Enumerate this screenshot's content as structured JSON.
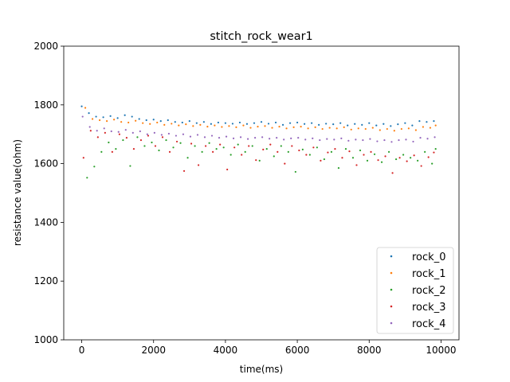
{
  "chart_data": {
    "type": "scatter",
    "title": "stitch_rock_wear1",
    "xlabel": "time(ms)",
    "ylabel": "resistance value(ohm)",
    "xlim": [
      -500,
      10500
    ],
    "ylim": [
      1000,
      2000
    ],
    "xticks": [
      0,
      2000,
      4000,
      6000,
      8000,
      10000
    ],
    "yticks": [
      1000,
      1200,
      1400,
      1600,
      1800,
      2000
    ],
    "grid": false,
    "legend_position": "lower-right",
    "series": [
      {
        "name": "rock_0",
        "color": "#1f77b4",
        "x": [
          0,
          200,
          400,
          600,
          800,
          1000,
          1200,
          1400,
          1600,
          1800,
          2000,
          2200,
          2400,
          2600,
          2800,
          3000,
          3200,
          3400,
          3600,
          3800,
          4000,
          4200,
          4400,
          4600,
          4800,
          5000,
          5200,
          5400,
          5600,
          5800,
          6000,
          6200,
          6400,
          6600,
          6800,
          7000,
          7200,
          7400,
          7600,
          7800,
          8000,
          8200,
          8400,
          8600,
          8800,
          9000,
          9200,
          9400,
          9600,
          9800
        ],
        "y": [
          1795,
          1772,
          1760,
          1758,
          1762,
          1755,
          1765,
          1760,
          1752,
          1748,
          1750,
          1745,
          1748,
          1742,
          1740,
          1745,
          1738,
          1742,
          1735,
          1740,
          1738,
          1736,
          1740,
          1735,
          1738,
          1742,
          1736,
          1740,
          1732,
          1738,
          1740,
          1735,
          1738,
          1732,
          1736,
          1734,
          1738,
          1730,
          1735,
          1732,
          1738,
          1730,
          1735,
          1728,
          1734,
          1738,
          1730,
          1745,
          1742,
          1745
        ]
      },
      {
        "name": "rock_1",
        "color": "#ff7f0e",
        "x": [
          100,
          300,
          500,
          700,
          900,
          1100,
          1300,
          1500,
          1700,
          1900,
          2100,
          2300,
          2500,
          2700,
          2900,
          3100,
          3300,
          3500,
          3700,
          3900,
          4100,
          4300,
          4500,
          4700,
          4900,
          5100,
          5300,
          5500,
          5700,
          5900,
          6100,
          6300,
          6500,
          6700,
          6900,
          7100,
          7300,
          7500,
          7700,
          7900,
          8100,
          8300,
          8500,
          8700,
          8900,
          9100,
          9300,
          9500,
          9700,
          9850
        ],
        "y": [
          1790,
          1752,
          1748,
          1745,
          1750,
          1742,
          1740,
          1746,
          1738,
          1735,
          1740,
          1732,
          1736,
          1730,
          1734,
          1728,
          1732,
          1726,
          1730,
          1725,
          1728,
          1724,
          1730,
          1722,
          1726,
          1728,
          1722,
          1726,
          1720,
          1724,
          1726,
          1720,
          1724,
          1718,
          1722,
          1720,
          1724,
          1716,
          1720,
          1718,
          1722,
          1714,
          1718,
          1712,
          1718,
          1720,
          1714,
          1725,
          1722,
          1730
        ]
      },
      {
        "name": "rock_2",
        "color": "#2ca02c",
        "x": [
          150,
          350,
          550,
          750,
          950,
          1150,
          1350,
          1550,
          1750,
          1950,
          2150,
          2350,
          2550,
          2750,
          2950,
          3150,
          3350,
          3550,
          3750,
          3950,
          4150,
          4350,
          4550,
          4750,
          4950,
          5150,
          5350,
          5550,
          5750,
          5950,
          6150,
          6350,
          6550,
          6750,
          6950,
          7150,
          7350,
          7550,
          7750,
          7950,
          8150,
          8350,
          8550,
          8750,
          8950,
          9150,
          9350,
          9550,
          9750,
          9850
        ],
        "y": [
          1552,
          1590,
          1640,
          1672,
          1650,
          1680,
          1592,
          1690,
          1660,
          1672,
          1645,
          1680,
          1655,
          1670,
          1620,
          1660,
          1640,
          1670,
          1650,
          1655,
          1630,
          1665,
          1640,
          1660,
          1610,
          1650,
          1625,
          1660,
          1640,
          1572,
          1648,
          1630,
          1655,
          1615,
          1640,
          1585,
          1650,
          1620,
          1645,
          1610,
          1632,
          1605,
          1640,
          1615,
          1630,
          1620,
          1610,
          1640,
          1600,
          1650
        ]
      },
      {
        "name": "rock_3",
        "color": "#d62728",
        "x": [
          50,
          250,
          450,
          650,
          850,
          1050,
          1250,
          1450,
          1650,
          1850,
          2050,
          2250,
          2450,
          2650,
          2850,
          3050,
          3250,
          3450,
          3650,
          3850,
          4050,
          4250,
          4450,
          4650,
          4850,
          5050,
          5250,
          5450,
          5650,
          5850,
          6050,
          6250,
          6450,
          6650,
          6850,
          7050,
          7250,
          7450,
          7650,
          7850,
          8050,
          8250,
          8450,
          8650,
          8850,
          9050,
          9250,
          9450,
          9650,
          9800
        ],
        "y": [
          1620,
          1712,
          1690,
          1705,
          1640,
          1700,
          1688,
          1650,
          1680,
          1695,
          1660,
          1690,
          1640,
          1675,
          1575,
          1668,
          1595,
          1660,
          1640,
          1665,
          1580,
          1655,
          1630,
          1660,
          1612,
          1648,
          1665,
          1640,
          1600,
          1660,
          1645,
          1630,
          1655,
          1610,
          1638,
          1650,
          1620,
          1642,
          1595,
          1630,
          1640,
          1612,
          1625,
          1568,
          1620,
          1608,
          1628,
          1592,
          1622,
          1638
        ]
      },
      {
        "name": "rock_4",
        "color": "#9467bd",
        "x": [
          25,
          225,
          425,
          625,
          825,
          1025,
          1225,
          1425,
          1625,
          1825,
          2025,
          2225,
          2425,
          2625,
          2825,
          3025,
          3225,
          3425,
          3625,
          3825,
          4025,
          4225,
          4425,
          4625,
          4825,
          5025,
          5225,
          5425,
          5625,
          5825,
          6025,
          6225,
          6425,
          6625,
          6825,
          7025,
          7225,
          7425,
          7625,
          7825,
          8025,
          8225,
          8425,
          8625,
          8825,
          9025,
          9225,
          9425,
          9625,
          9825
        ],
        "y": [
          1760,
          1725,
          1712,
          1720,
          1710,
          1708,
          1715,
          1705,
          1710,
          1700,
          1705,
          1698,
          1702,
          1695,
          1700,
          1692,
          1698,
          1690,
          1695,
          1688,
          1692,
          1686,
          1690,
          1684,
          1688,
          1690,
          1685,
          1688,
          1682,
          1686,
          1688,
          1682,
          1686,
          1680,
          1684,
          1682,
          1686,
          1678,
          1682,
          1680,
          1684,
          1676,
          1680,
          1674,
          1680,
          1682,
          1675,
          1688,
          1685,
          1690
        ]
      }
    ]
  }
}
